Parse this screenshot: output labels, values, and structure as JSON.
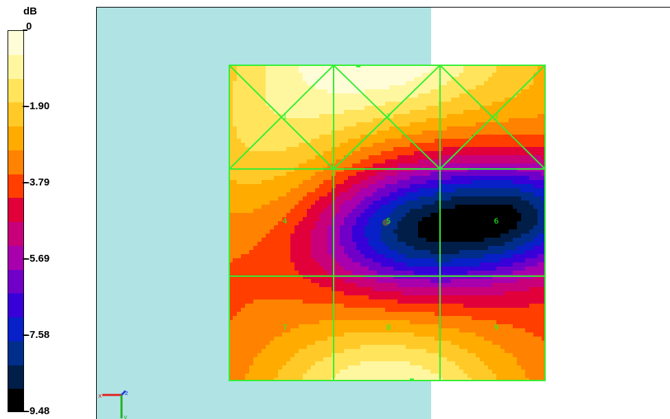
{
  "legend": {
    "unit": "dB",
    "ticks": [
      "0",
      "-1.90",
      "-3.79",
      "-5.69",
      "-7.58",
      "-9.48"
    ],
    "colors": [
      "#fffdd8",
      "#fff7a0",
      "#ffe45c",
      "#ffca28",
      "#ffab00",
      "#ff8200",
      "#ff3e00",
      "#e1003a",
      "#c8007a",
      "#a800ad",
      "#7000c8",
      "#3700d8",
      "#0720c8",
      "#012e8a",
      "#001e48",
      "#000000"
    ]
  },
  "viewport": {
    "floor_color": "#b0e3e3",
    "mesh_color": "#33ee33",
    "segments": [
      "1",
      "2",
      "3",
      "4",
      "5",
      "6",
      "7",
      "8",
      "9"
    ]
  },
  "axes": {
    "x_label": "x",
    "y_label": "y",
    "z_label": "z"
  }
}
